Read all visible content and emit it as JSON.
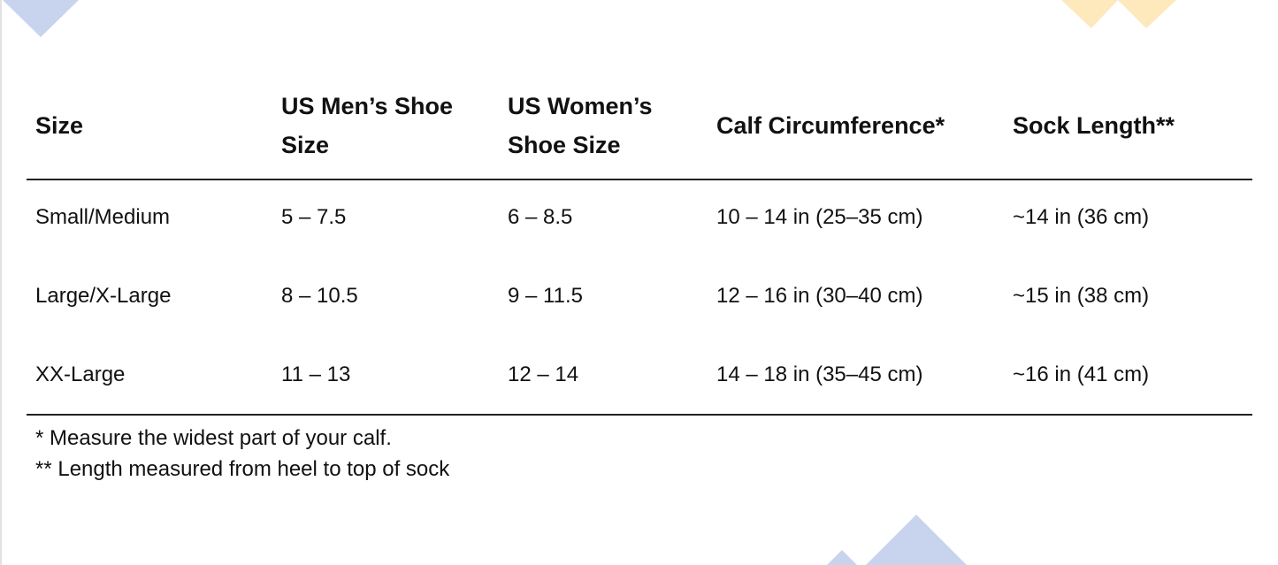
{
  "colors": {
    "blue_decoration": "#c8d4ee",
    "yellow_decoration": "#fee9bd"
  },
  "table": {
    "headers": [
      "Size",
      "US Men’s Shoe Size",
      "US Women’s Shoe Size",
      "Calf Circumference*",
      "Sock Length**"
    ],
    "header_lines": [
      [
        "Size"
      ],
      [
        "US Men’s Shoe",
        "Size"
      ],
      [
        "US Women’s",
        "Shoe Size"
      ],
      [
        "Calf Circumference*"
      ],
      [
        "Sock Length**"
      ]
    ],
    "rows": [
      [
        "Small/Medium",
        "5 – 7.5",
        "6 – 8.5",
        "10 – 14 in (25–35 cm)",
        "~14 in (36 cm)"
      ],
      [
        "Large/X-Large",
        "8 – 10.5",
        "9 – 11.5",
        "12 – 16 in (30–40 cm)",
        "~15 in (38 cm)"
      ],
      [
        "XX-Large",
        "11 – 13",
        "12 – 14",
        "14 – 18 in (35–45 cm)",
        "~16 in (41 cm)"
      ]
    ]
  },
  "footnotes": [
    "* Measure the widest part of your calf.",
    "** Length measured from heel to top of sock"
  ]
}
